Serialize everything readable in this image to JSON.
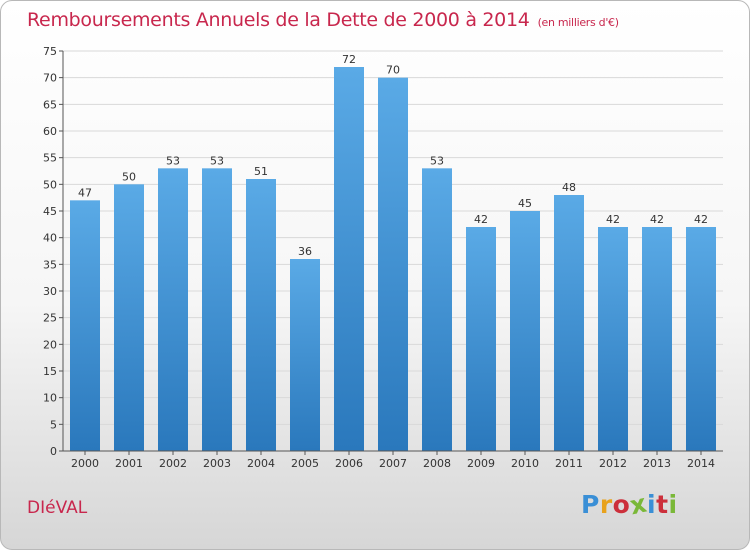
{
  "chart_data": {
    "type": "bar",
    "title": "Remboursements Annuels de la Dette de 2000 à 2014",
    "subtitle": "(en milliers d'€)",
    "categories": [
      "2000",
      "2001",
      "2002",
      "2003",
      "2004",
      "2005",
      "2006",
      "2007",
      "2008",
      "2009",
      "2010",
      "2011",
      "2012",
      "2013",
      "2014"
    ],
    "values": [
      47,
      50,
      53,
      53,
      51,
      36,
      72,
      70,
      53,
      42,
      45,
      48,
      42,
      42,
      42
    ],
    "ylim": [
      0,
      75
    ],
    "yticks": [
      0,
      5,
      10,
      15,
      20,
      25,
      30,
      35,
      40,
      45,
      50,
      55,
      60,
      65,
      70,
      75
    ],
    "grid": true,
    "xlabel": "",
    "ylabel": "",
    "bar_color": "#5aaae6",
    "bar_color_dark": "#2a78bc"
  },
  "footer": {
    "commune": "DIéVAL",
    "logo_text": "Proxiti",
    "logo_colors": [
      "#3a8fd6",
      "#e8a21c",
      "#cc2f3b",
      "#7ab838",
      "#3a8fd6",
      "#cc2f3b",
      "#7ab838"
    ]
  }
}
